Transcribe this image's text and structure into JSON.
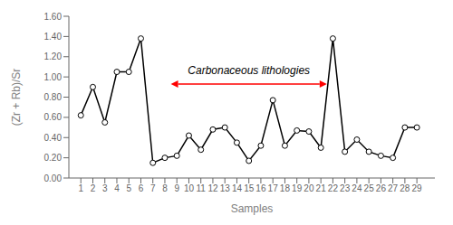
{
  "chart_data": {
    "type": "line",
    "x": [
      1,
      2,
      3,
      4,
      5,
      6,
      7,
      8,
      9,
      10,
      11,
      12,
      13,
      14,
      15,
      16,
      17,
      18,
      19,
      20,
      21,
      22,
      23,
      24,
      25,
      26,
      27,
      28,
      29
    ],
    "values": [
      0.62,
      0.9,
      0.55,
      1.05,
      1.05,
      1.38,
      0.15,
      0.2,
      0.22,
      0.42,
      0.28,
      0.48,
      0.5,
      0.35,
      0.17,
      0.32,
      0.77,
      0.32,
      0.47,
      0.46,
      0.3,
      1.38,
      0.26,
      0.38,
      0.26,
      0.22,
      0.2,
      0.5,
      0.5
    ],
    "color": "#000000",
    "marker": "circle",
    "xlabel": "Samples",
    "ylabel": "(Zr + Rb)/Sr",
    "xlim": [
      0.0,
      30.5
    ],
    "xticks": [
      1,
      2,
      3,
      4,
      5,
      6,
      7,
      8,
      9,
      10,
      11,
      12,
      13,
      14,
      15,
      16,
      17,
      18,
      19,
      20,
      21,
      22,
      23,
      24,
      25,
      26,
      27,
      28,
      29
    ],
    "ylim": [
      0.0,
      1.6
    ],
    "yticks": [
      {
        "value": 0.0,
        "label": "0.00"
      },
      {
        "value": 0.2,
        "label": "0.20"
      },
      {
        "value": 0.4,
        "label": "0.40"
      },
      {
        "value": 0.6,
        "label": "0.60"
      },
      {
        "value": 0.8,
        "label": "0.80"
      },
      {
        "value": 1.0,
        "label": "1.00"
      },
      {
        "value": 1.2,
        "label": "1.20"
      },
      {
        "value": 1.4,
        "label": "1.40"
      },
      {
        "value": 1.6,
        "label": "1.60"
      }
    ],
    "grid": false,
    "annotations": [
      {
        "text": "Carbonaceous lithologies",
        "x": 15.0,
        "y": 1.0,
        "arrow": {
          "x": [
            8.5,
            21.5
          ],
          "y": 0.93,
          "color": "red"
        }
      }
    ]
  }
}
